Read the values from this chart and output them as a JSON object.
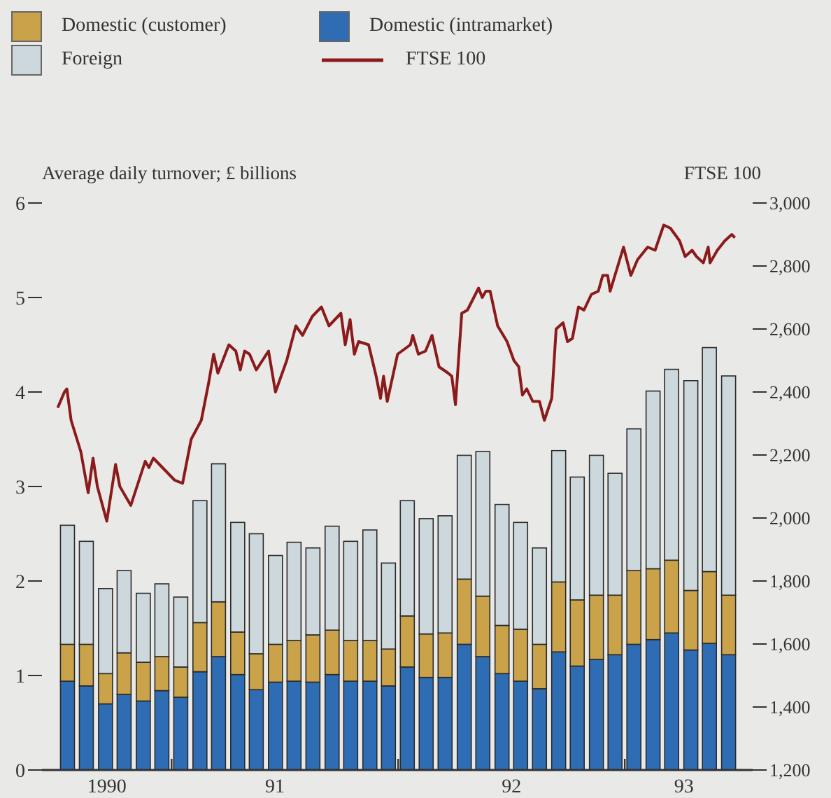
{
  "chart_data": {
    "type": "bar",
    "stacked": true,
    "xlabel": null,
    "ylabel": "Average daily turnover; £ billions",
    "y2label": "FTSE 100",
    "legend": "top",
    "x": [
      "1990-07-16",
      "1990-08-16",
      "1990-09-16",
      "1990-10-16",
      "1990-11-16",
      "1990-12-16",
      "1991-01-16",
      "1991-02-15",
      "1991-03-16",
      "1991-04-16",
      "1991-05-16",
      "1991-06-16",
      "1991-07-16",
      "1991-08-16",
      "1991-09-16",
      "1991-10-16",
      "1991-11-16",
      "1991-12-16",
      "1992-01-16",
      "1992-02-15",
      "1992-03-16",
      "1992-04-16",
      "1992-05-16",
      "1992-06-16",
      "1992-07-16",
      "1992-08-16",
      "1992-09-16",
      "1992-10-16",
      "1992-11-16",
      "1992-12-16",
      "1993-01-16",
      "1993-02-15",
      "1993-03-16",
      "1993-04-16",
      "1993-05-16",
      "1993-06-16"
    ],
    "xlim": [
      "1990-06-05",
      "1993-07-25"
    ],
    "xticks": [
      {
        "value": "1990-09-18",
        "label": "1990"
      },
      {
        "value": "1991-01-01",
        "label": null
      },
      {
        "value": "1991-06-15",
        "label": "91"
      },
      {
        "value": "1992-01-01",
        "label": null
      },
      {
        "value": "1992-07-01",
        "label": "92"
      },
      {
        "value": "1993-01-01",
        "label": null
      },
      {
        "value": "1993-04-05",
        "label": "93"
      }
    ],
    "ylim": [
      0,
      6
    ],
    "yticks": [
      0,
      1,
      2,
      3,
      4,
      5,
      6
    ],
    "y2lim": [
      1200,
      3000
    ],
    "y2ticks": [
      {
        "value": 1200,
        "label": "1,200"
      },
      {
        "value": 1400,
        "label": "1,400"
      },
      {
        "value": 1600,
        "label": "1,600"
      },
      {
        "value": 1800,
        "label": "1,800"
      },
      {
        "value": 2000,
        "label": "2,000"
      },
      {
        "value": 2200,
        "label": "2,200"
      },
      {
        "value": 2400,
        "label": "2,400"
      },
      {
        "value": 2600,
        "label": "2,600"
      },
      {
        "value": 2800,
        "label": "2,800"
      },
      {
        "value": 3000,
        "label": "3,000"
      }
    ],
    "series": [
      {
        "name": "Domestic (intramarket)",
        "color": "#2e6db4",
        "values": [
          0.94,
          0.89,
          0.7,
          0.8,
          0.73,
          0.84,
          0.77,
          1.04,
          1.2,
          1.01,
          0.85,
          0.93,
          0.94,
          0.93,
          1.01,
          0.94,
          0.94,
          0.89,
          1.09,
          0.98,
          0.98,
          1.33,
          1.2,
          1.02,
          0.94,
          0.86,
          1.25,
          1.1,
          1.17,
          1.22,
          1.33,
          1.38,
          1.45,
          1.27,
          1.34,
          1.22
        ]
      },
      {
        "name": "Domestic (customer)",
        "color": "#c9a24a",
        "values": [
          0.39,
          0.44,
          0.32,
          0.44,
          0.41,
          0.36,
          0.32,
          0.52,
          0.58,
          0.45,
          0.38,
          0.4,
          0.43,
          0.5,
          0.47,
          0.43,
          0.43,
          0.39,
          0.54,
          0.46,
          0.47,
          0.69,
          0.64,
          0.51,
          0.55,
          0.47,
          0.74,
          0.7,
          0.68,
          0.63,
          0.78,
          0.75,
          0.77,
          0.63,
          0.76,
          0.63
        ]
      },
      {
        "name": "Foreign",
        "color": "#cdd8dc",
        "values": [
          1.26,
          1.09,
          0.9,
          0.87,
          0.73,
          0.77,
          0.74,
          1.29,
          1.46,
          1.16,
          1.27,
          0.94,
          1.04,
          0.92,
          1.1,
          1.05,
          1.17,
          0.91,
          1.22,
          1.22,
          1.24,
          1.31,
          1.53,
          1.28,
          1.13,
          1.02,
          1.39,
          1.3,
          1.48,
          1.29,
          1.5,
          1.88,
          2.02,
          2.22,
          2.37,
          2.32
        ]
      },
      {
        "name": "FTSE 100",
        "type": "line",
        "axis": "y2",
        "color": "#8b1a1a",
        "x": [
          "1990-06-30",
          "1990-07-11",
          "1990-07-15",
          "1990-07-22",
          "1990-08-07",
          "1990-08-19",
          "1990-08-27",
          "1990-09-03",
          "1990-09-18",
          "1990-10-02",
          "1990-10-09",
          "1990-10-27",
          "1990-11-19",
          "1990-11-25",
          "1990-12-02",
          "1990-12-17",
          "1991-01-06",
          "1991-01-19",
          "1991-02-02",
          "1991-02-17",
          "1991-02-28",
          "1991-03-08",
          "1991-03-15",
          "1991-04-02",
          "1991-04-13",
          "1991-04-20",
          "1991-04-27",
          "1991-05-05",
          "1991-05-16",
          "1991-06-05",
          "1991-06-16",
          "1991-07-04",
          "1991-07-19",
          "1991-07-30",
          "1991-08-15",
          "1991-08-30",
          "1991-09-11",
          "1991-09-30",
          "1991-10-07",
          "1991-10-15",
          "1991-10-22",
          "1991-10-29",
          "1991-11-14",
          "1991-11-26",
          "1991-12-03",
          "1991-12-08",
          "1991-12-14",
          "1991-12-31",
          "1992-01-14",
          "1992-01-21",
          "1992-01-25",
          "1992-02-03",
          "1992-02-14",
          "1992-02-24",
          "1992-03-06",
          "1992-03-21",
          "1992-03-27",
          "1992-04-02",
          "1992-04-12",
          "1992-04-21",
          "1992-05-09",
          "1992-05-15",
          "1992-05-21",
          "1992-05-28",
          "1992-06-09",
          "1992-06-24",
          "1992-07-05",
          "1992-07-13",
          "1992-07-19",
          "1992-07-26",
          "1992-08-05",
          "1992-08-16",
          "1992-08-24",
          "1992-09-05",
          "1992-09-12",
          "1992-09-23",
          "1992-09-30",
          "1992-10-08",
          "1992-10-18",
          "1992-10-27",
          "1992-11-08",
          "1992-11-19",
          "1992-11-26",
          "1992-12-04",
          "1992-12-08",
          "1992-12-19",
          "1992-12-30",
          "1993-01-11",
          "1993-01-22",
          "1993-02-07",
          "1993-02-18",
          "1993-03-03",
          "1993-03-14",
          "1993-03-29",
          "1993-04-07",
          "1993-04-18",
          "1993-04-25",
          "1993-05-06",
          "1993-05-14",
          "1993-05-17",
          "1993-05-29",
          "1993-06-10",
          "1993-06-21",
          "1993-06-26"
        ],
        "values": [
          2350,
          2400,
          2410,
          2310,
          2210,
          2080,
          2190,
          2100,
          1990,
          2170,
          2100,
          2040,
          2180,
          2160,
          2190,
          2160,
          2120,
          2110,
          2250,
          2310,
          2430,
          2520,
          2460,
          2550,
          2530,
          2470,
          2530,
          2520,
          2470,
          2530,
          2400,
          2500,
          2610,
          2580,
          2640,
          2670,
          2610,
          2650,
          2550,
          2630,
          2520,
          2560,
          2550,
          2450,
          2380,
          2450,
          2370,
          2520,
          2540,
          2550,
          2580,
          2520,
          2530,
          2580,
          2480,
          2460,
          2450,
          2360,
          2650,
          2660,
          2730,
          2700,
          2720,
          2720,
          2610,
          2560,
          2500,
          2480,
          2390,
          2410,
          2370,
          2370,
          2310,
          2380,
          2600,
          2620,
          2560,
          2570,
          2670,
          2660,
          2710,
          2720,
          2770,
          2770,
          2720,
          2790,
          2860,
          2770,
          2820,
          2860,
          2850,
          2930,
          2920,
          2880,
          2830,
          2850,
          2830,
          2810,
          2860,
          2810,
          2850,
          2880,
          2900,
          2890
        ]
      }
    ]
  }
}
